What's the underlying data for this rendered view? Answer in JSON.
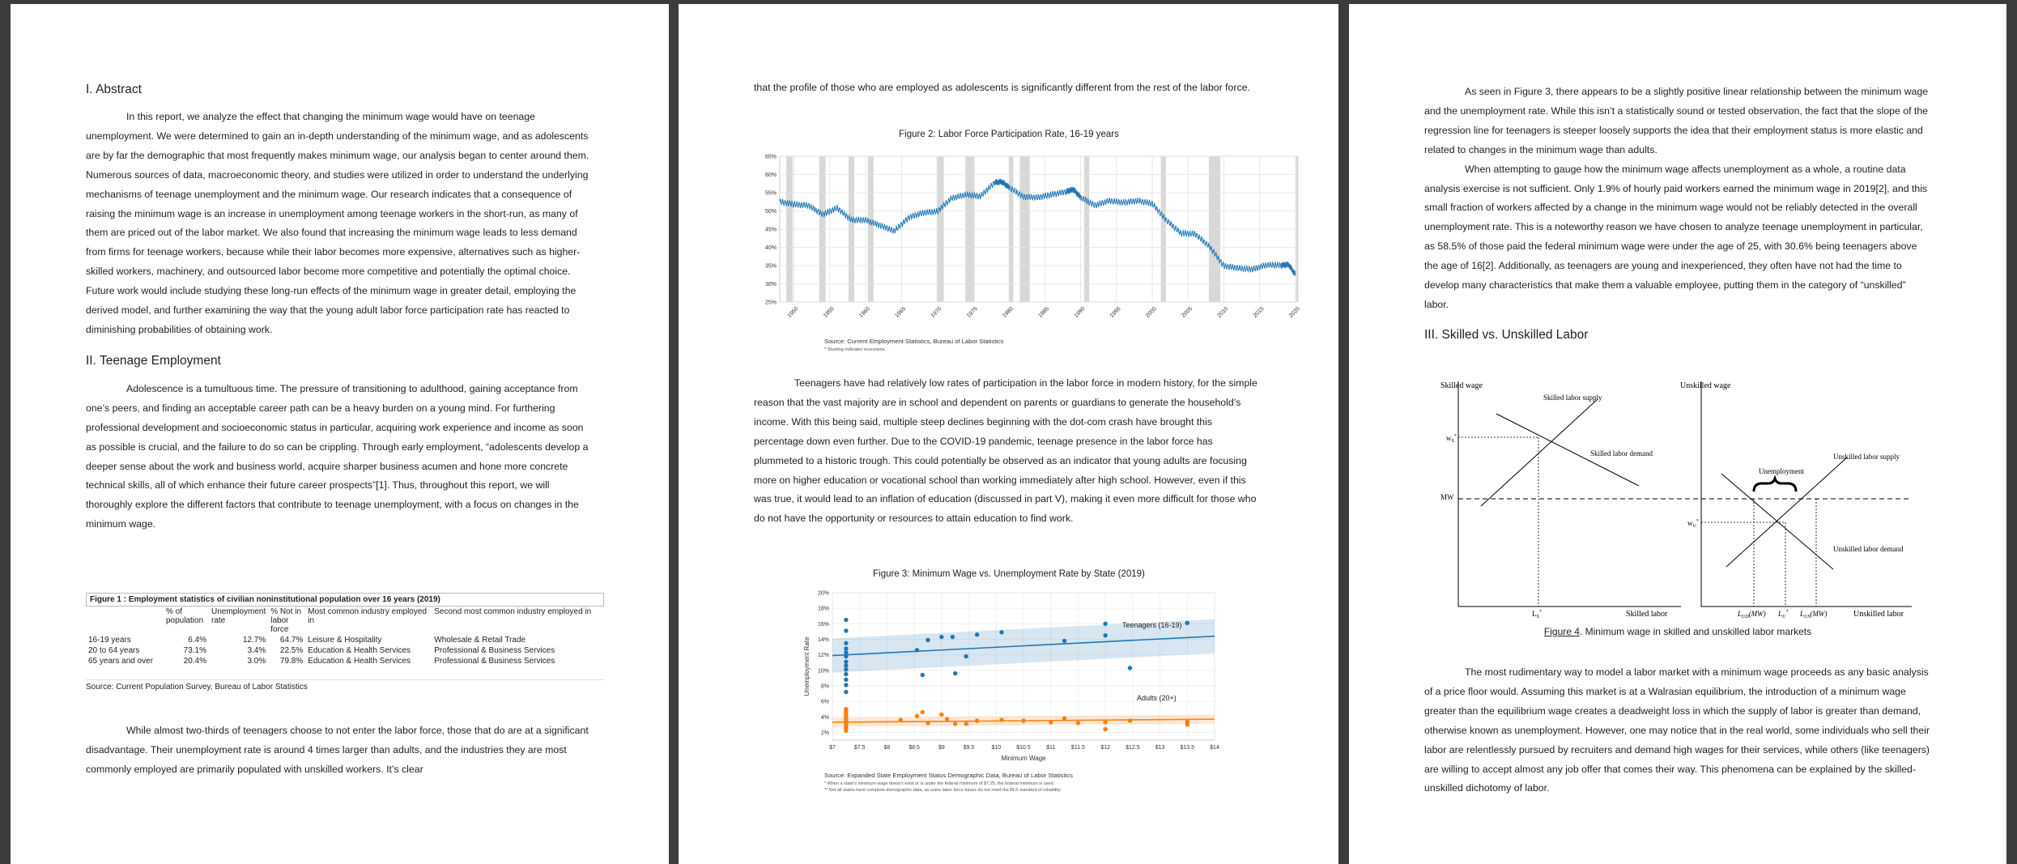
{
  "page1": {
    "abstract_heading": "I. Abstract",
    "abstract_text": "In this report, we analyze the effect that changing the minimum wage would have on teenage unemployment. We were determined to gain an in-depth understanding of the minimum wage, and as adolescents are by far the demographic that most frequently makes minimum wage, our analysis began to center around them. Numerous sources of data, macroeconomic theory, and studies were utilized in order to understand the underlying mechanisms of teenage unemployment and the minimum wage. Our research indicates that a consequence of raising the minimum wage is an increase in unemployment among teenage workers in the short-run, as many of them are priced out of the labor market. We also found that increasing the minimum wage leads to less demand from firms for teenage workers, because while their labor becomes more expensive, alternatives such as higher-skilled workers, machinery, and outsourced labor become more competitive and potentially the optimal choice. Future work would include studying these long-run effects of the minimum wage in greater detail, employing the derived model, and further examining the way that the young adult labor force participation rate has reacted to diminishing probabilities of obtaining work.",
    "teen_heading": "II. Teenage Employment",
    "teen_text": "Adolescence is a tumultuous time. The pressure of transitioning to adulthood, gaining acceptance from one’s peers, and finding an acceptable career path can be a heavy burden on a young mind. For furthering professional development and socioeconomic status in particular, acquiring work experience and income as soon as possible is crucial, and the failure to do so can be crippling. Through early employment, “adolescents develop a deeper sense about the work and business world, acquire sharper business acumen and hone more concrete technical skills, all of which enhance their future career prospects”[1]. Thus, throughout this report, we will thoroughly explore the different factors that contribute to teenage unemployment, with a focus on changes in the minimum wage.",
    "table": {
      "caption": "Figure 1 : Employment statistics of civilian noninstitutional population over 16 years (2019)",
      "headers": [
        "",
        "% of population",
        "Unemployment rate",
        "% Not in labor force",
        "Most common industry employed in",
        "Second most common industry employed in"
      ],
      "rows": [
        [
          "16-19 years",
          "6.4%",
          "12.7%",
          "64.7%",
          "Leisure & Hospitality",
          "Wholesale & Retail Trade"
        ],
        [
          "20 to 64 years",
          "73.1%",
          "3.4%",
          "22.5%",
          "Education & Health Services",
          "Professional & Business Services"
        ],
        [
          "65 years and over",
          "20.4%",
          "3.0%",
          "79.8%",
          "Education & Health Services",
          "Professional & Business Services"
        ]
      ],
      "source": "Source: Current Population Survey, Bureau of Labor Statistics"
    },
    "closing_text": "While almost two-thirds of teenagers choose to not enter the labor force, those that do are at a significant disadvantage. Their unemployment rate is around 4 times larger than adults, and the industries they are most commonly employed are primarily populated with unskilled workers. It’s clear"
  },
  "page2": {
    "top_text": "that the profile of those who are employed as adolescents is significantly different from the rest of the labor force.",
    "fig2_title": "Figure 2: Labor Force Participation Rate, 16-19 years",
    "fig2_source": "Source: Current Employment Statistics, Bureau of Labor Statistics",
    "fig2_note": "* Shading indicates recessions",
    "middle_text": "Teenagers have had relatively low rates of participation in the labor force in modern history, for the simple reason that the vast majority are in school and dependent on parents or guardians to generate the household’s income. With this being said, multiple steep declines beginning with the dot-com crash have brought this percentage down even further. Due to the COVID-19 pandemic, teenage presence in the labor force has plummeted to a historic trough. This could potentially be observed as an indicator that young adults are focusing more on higher education or vocational school than working immediately after high school. However, even if this was true, it would lead to an inflation of education (discussed in part V), making it even more difficult for those who do not have the opportunity or resources to attain education to find work.",
    "fig3_title": "Figure 3: Minimum Wage vs. Unemployment Rate by State (2019)",
    "fig3_source": "Source: Expanded State Employment Status Demographic Data, Bureau of Labor Statistics",
    "fig3_note1": "* When a state’s minimum wage doesn’t exist or is under the federal minimum of $7.25, the federal minimum is used.",
    "fig3_note2": "** Not all states have complete demographic data, as some labor force bases do not meet the BLS standard of reliability."
  },
  "page3": {
    "para1": "As seen in Figure 3, there appears to be a slightly positive linear relationship between the minimum wage and the unemployment rate. While this isn’t a statistically sound or tested observation, the fact that the slope of the regression line for teenagers is steeper loosely supports the idea that their employment status is more elastic and related to changes in the minimum wage than adults.",
    "para2": "When attempting to gauge how the minimum wage affects unemployment as a whole, a routine data analysis exercise is not sufficient. Only 1.9% of hourly paid workers earned the minimum wage in 2019[2], and this small fraction of workers affected by a change in the minimum wage would not be reliably detected in the overall unemployment rate. This is a noteworthy reason we have chosen to analyze teenage unemployment in particular, as 58.5% of those paid the federal minimum wage were under the age of 25, with 30.6% being teenagers above the age of 16[2]. Additionally, as teenagers are young and inexperienced, they often have not had the time to develop many characteristics that make them a valuable employee, putting them in the category of “unskilled” labor.",
    "heading": "III. Skilled vs. Unskilled Labor",
    "diagram": {
      "skilled_wage": "Skilled wage",
      "skilled_supply": "Skilled labor supply",
      "skilled_demand": "Skilled labor demand",
      "skilled_labor": "Skilled labor",
      "ws": "w",
      "ws_sub": "S",
      "ls": "L",
      "ls_sub": "S",
      "mw": "MW",
      "unskilled_wage": "Unskilled wage",
      "unskilled_supply": "Unskilled labor supply",
      "unskilled_demand": "Unskilled labor demand",
      "unskilled_labor": "Unskilled labor",
      "unemployment": "Unemployment",
      "wu": "w",
      "wu_sub": "U",
      "lud": "L",
      "lud_sub": "UD",
      "lud_paren": "(MW)",
      "lu": "L",
      "lu_sub": "U",
      "lus": "L",
      "lus_sub": "US",
      "lus_paren": "(MW)",
      "star": "*"
    },
    "fig4_label": "Figure 4",
    "fig4_caption": ". Minimum wage in skilled and unskilled labor markets",
    "para3": "The most rudimentary way to model a labor market with a minimum wage proceeds as any basic analysis of a price floor would. Assuming this market is at a Walrasian equilibrium, the introduction of a minimum wage greater than the equilibrium wage creates a deadweight loss in which the supply of labor is greater than demand, otherwise known as unemployment. However, one may notice that in the real world, some individuals who sell their labor are relentlessly pursued by recruiters and demand high wages for their services, while others (like teenagers) are willing to accept almost any job offer that comes their way. This phenomena can be explained by the skilled-unskilled dichotomy of labor."
  },
  "chart_data": [
    {
      "type": "line",
      "title": "Figure 2: Labor Force Participation Rate, 16-19 years",
      "xlim": [
        1948,
        2020
      ],
      "ylim": [
        25,
        65
      ],
      "x_ticks": [
        "1950",
        "1955",
        "1960",
        "1965",
        "1970",
        "1975",
        "1980",
        "1985",
        "1990",
        "1995",
        "2000",
        "2005",
        "2010",
        "2015",
        "2020"
      ],
      "y_ticks": [
        "25%",
        "30%",
        "35%",
        "40%",
        "45%",
        "50%",
        "55%",
        "60%",
        "65%"
      ],
      "recessions": [
        [
          1948.9,
          1949.8
        ],
        [
          1953.5,
          1954.4
        ],
        [
          1957.6,
          1958.4
        ],
        [
          1960.3,
          1961.1
        ],
        [
          1969.9,
          1970.9
        ],
        [
          1973.9,
          1975.2
        ],
        [
          1980.0,
          1980.6
        ],
        [
          1981.5,
          1982.9
        ],
        [
          1990.5,
          1991.2
        ],
        [
          2001.2,
          2001.9
        ],
        [
          2007.9,
          2009.5
        ],
        [
          2020.1,
          2020.4
        ]
      ],
      "series": [
        {
          "x": [
            1948,
            1950,
            1952,
            1954,
            1956,
            1958,
            1960,
            1962,
            1964,
            1966,
            1968,
            1970,
            1972,
            1974,
            1976,
            1978,
            1979,
            1980,
            1982,
            1984,
            1986,
            1988,
            1989,
            1990,
            1992,
            1994,
            1996,
            1998,
            2000,
            2002,
            2004,
            2006,
            2008,
            2010,
            2012,
            2014,
            2016,
            2018,
            2019,
            2020
          ],
          "y": [
            52.5,
            51.8,
            51.5,
            49.0,
            50.8,
            47.5,
            47.5,
            46.0,
            44.5,
            48.2,
            49.5,
            49.9,
            53.5,
            54.5,
            54.0,
            57.8,
            58.0,
            56.5,
            53.9,
            53.7,
            54.5,
            55.3,
            55.9,
            53.7,
            51.5,
            52.8,
            52.3,
            52.8,
            52.0,
            47.4,
            43.9,
            43.7,
            40.2,
            34.9,
            34.3,
            34.0,
            35.2,
            35.1,
            35.3,
            32.5
          ]
        }
      ]
    },
    {
      "type": "scatter",
      "title": "Figure 3: Minimum Wage vs. Unemployment Rate by State (2019)",
      "xlabel": "Minimum Wage",
      "ylabel": "Unemployment Rate",
      "xlim": [
        7,
        14
      ],
      "ylim": [
        0.01,
        0.2
      ],
      "x_ticks": [
        "$7",
        "$7.5",
        "$8",
        "$8.5",
        "$9",
        "$9.5",
        "$10",
        "$10.5",
        "$11",
        "$11.5",
        "$12",
        "$12.5",
        "$13",
        "$13.5",
        "$14"
      ],
      "y_ticks": [
        "2%",
        "4%",
        "6%",
        "8%",
        "10%",
        "12%",
        "14%",
        "16%",
        "18%",
        "20%"
      ],
      "series": [
        {
          "name": "Teenagers (16-19)",
          "color": "#1f77b4",
          "x": [
            7.25,
            7.25,
            7.25,
            7.25,
            7.25,
            7.25,
            7.25,
            7.25,
            7.25,
            7.25,
            7.25,
            7.25,
            7.25,
            8.55,
            8.65,
            8.75,
            9.0,
            9.2,
            9.25,
            9.45,
            9.65,
            10.1,
            11.25,
            12.0,
            12.0,
            12.45,
            13.5
          ],
          "y": [
            0.165,
            0.151,
            0.135,
            0.128,
            0.123,
            0.118,
            0.111,
            0.106,
            0.101,
            0.095,
            0.088,
            0.081,
            0.072,
            0.126,
            0.094,
            0.139,
            0.143,
            0.143,
            0.096,
            0.118,
            0.146,
            0.149,
            0.138,
            0.145,
            0.16,
            0.103,
            0.161
          ],
          "fit": [
            [
              7,
              0.119
            ],
            [
              14,
              0.144
            ]
          ]
        },
        {
          "name": "Adults (20+)",
          "color": "#ff7f0e",
          "x": [
            7.25,
            7.25,
            7.25,
            7.25,
            7.25,
            7.25,
            7.25,
            7.25,
            7.25,
            7.25,
            7.25,
            7.25,
            7.25,
            7.25,
            8.25,
            8.55,
            8.65,
            8.75,
            9.0,
            9.1,
            9.25,
            9.45,
            9.65,
            10.1,
            10.5,
            11.0,
            11.25,
            11.5,
            12.0,
            12.0,
            12.45,
            13.5,
            13.5
          ],
          "y": [
            0.025,
            0.028,
            0.03,
            0.033,
            0.035,
            0.037,
            0.04,
            0.042,
            0.045,
            0.048,
            0.05,
            0.033,
            0.027,
            0.022,
            0.036,
            0.041,
            0.046,
            0.032,
            0.043,
            0.037,
            0.031,
            0.031,
            0.035,
            0.036,
            0.035,
            0.033,
            0.038,
            0.032,
            0.033,
            0.024,
            0.035,
            0.034,
            0.03
          ],
          "fit": [
            [
              7,
              0.033
            ],
            [
              14,
              0.037
            ]
          ]
        }
      ]
    }
  ]
}
